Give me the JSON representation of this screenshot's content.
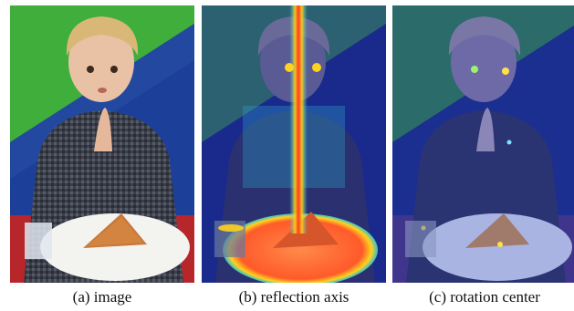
{
  "figure": {
    "panels": [
      {
        "id": "a",
        "caption": "(a) image"
      },
      {
        "id": "b",
        "caption": "(b) reflection axis"
      },
      {
        "id": "c",
        "caption": "(c) rotation center"
      }
    ],
    "colors": {
      "wall_green": "#3fae3a",
      "wall_blue": "#1c3f9a",
      "wall_navy": "#162a6e",
      "shirt": "#3b3f4a",
      "skin": "#e9c2a6",
      "hair": "#d8b777",
      "plate": "#f3f3f0",
      "pizza": "#c9773a",
      "table_red": "#b6262b",
      "heat_overlay": "#1a2a8c",
      "heat_hot": "#ff3b1a",
      "heat_warm": "#ffd21f"
    }
  }
}
